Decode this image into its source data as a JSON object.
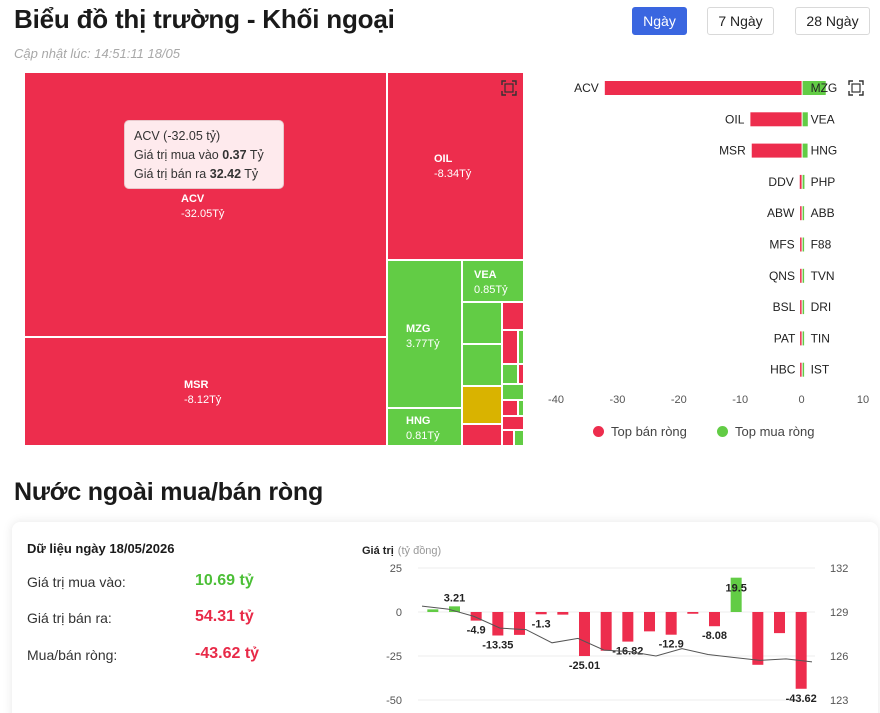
{
  "header": {
    "title": "Biểu đồ thị trường - Khối ngoại",
    "updated": "Cập nhật lúc: 14:51:11 18/05",
    "tabs": [
      {
        "label": "Ngày",
        "active": true
      },
      {
        "label": "7 Ngày",
        "active": false
      },
      {
        "label": "28 Ngày",
        "active": false
      }
    ]
  },
  "colors": {
    "sell": "#ed2d4d",
    "buy": "#62cc45",
    "neutral": "#d9b300",
    "accent": "#3a66e0"
  },
  "treemap": {
    "tiles": [
      {
        "code": "ACV",
        "value": "-32.05Tỷ"
      },
      {
        "code": "OIL",
        "value": "-8.34Tỷ"
      },
      {
        "code": "MSR",
        "value": "-8.12Tỷ"
      },
      {
        "code": "MZG",
        "value": "3.77Tỷ"
      },
      {
        "code": "VEA",
        "value": "0.85Tỷ"
      },
      {
        "code": "HNG",
        "value": "0.81Tỷ"
      }
    ],
    "tooltip": {
      "title": "ACV (-32.05 tỷ)",
      "buy_label": "Giá trị mua vào",
      "buy_value": "0.37",
      "sell_label": "Giá trị bán ra",
      "sell_value": "32.42",
      "unit": "Tỷ"
    }
  },
  "legend": {
    "sell": "Top bán ròng",
    "buy": "Top mua ròng"
  },
  "summary": {
    "section_title": "Nước ngoài mua/bán ròng",
    "date_title": "Dữ liệu ngày 18/05/2026",
    "buy_label": "Giá trị mua vào:",
    "buy_value": "10.69 tỷ",
    "sell_label": "Giá trị bán ra:",
    "sell_value": "54.31 tỷ",
    "net_label": "Mua/bán ròng:",
    "net_value": "-43.62 tỷ"
  },
  "chart_data": [
    {
      "type": "bar",
      "orientation": "horizontal",
      "xlim": [
        -40,
        10
      ],
      "x_ticks": [
        -40,
        -30,
        -20,
        -10,
        0,
        10
      ],
      "sell_categories": [
        "ACV",
        "OIL",
        "MSR",
        "DDV",
        "ABW",
        "MFS",
        "QNS",
        "BSL",
        "PAT",
        "HBC"
      ],
      "sell_values": [
        -32.05,
        -8.34,
        -8.12,
        -0.3,
        -0.2,
        -0.15,
        -0.1,
        -0.05,
        -0.04,
        -0.03
      ],
      "buy_categories": [
        "MZG",
        "VEA",
        "HNG",
        "PHP",
        "ABB",
        "F88",
        "TVN",
        "DRI",
        "TIN",
        "IST"
      ],
      "buy_values": [
        3.77,
        0.85,
        0.81,
        0.3,
        0.2,
        0.1,
        0.05,
        0.04,
        0.03,
        0.02
      ],
      "series_names": [
        "Top bán ròng",
        "Top mua ròng"
      ]
    },
    {
      "type": "bar",
      "ylabel": "Giá trị",
      "ylabel_unit": "(tỷ đồng)",
      "ylim": [
        -50,
        25
      ],
      "y_ticks": [
        25,
        0,
        -25,
        -50
      ],
      "y2lim": [
        123,
        132
      ],
      "y2_ticks": [
        132,
        129,
        126,
        123
      ],
      "values": [
        1.5,
        3.21,
        -4.9,
        -13.35,
        -1.3,
        -25.01,
        -16.82,
        -12.9,
        -1.0,
        -8.08,
        19.5,
        -30.0,
        -43.62
      ],
      "data_labels": [
        "",
        "3.21",
        "-4.9",
        "-13.35",
        "-1.3",
        "-25.01",
        "-16.82",
        "-12.9",
        "",
        "-8.08",
        "19.5",
        "",
        "-43.62"
      ],
      "extra_bars": [
        -13.0,
        -1.5,
        -22.0,
        -11.0,
        -12.0,
        -30.0
      ],
      "line_values": [
        129.4,
        129.2,
        128.7,
        127.9,
        127.8,
        126.9,
        127.2,
        126.4,
        126.3,
        126.0,
        126.5,
        126.1,
        125.9,
        125.7,
        125.8,
        125.6
      ]
    }
  ]
}
